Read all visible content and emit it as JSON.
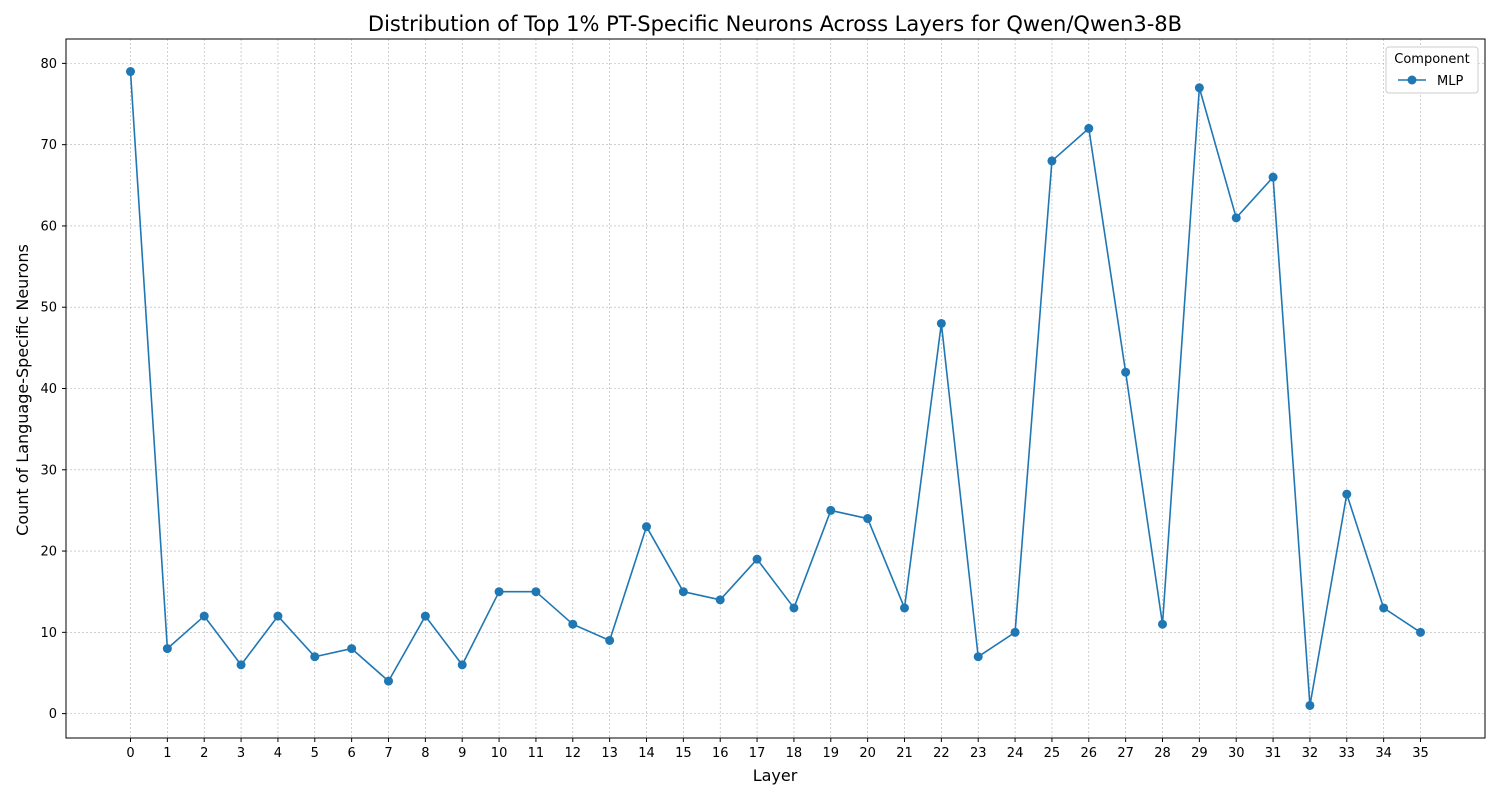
{
  "chart_data": {
    "type": "line",
    "title": "Distribution of Top 1% PT-Specific Neurons Across Layers for Qwen/Qwen3-8B",
    "xlabel": "Layer",
    "ylabel": "Count of Language-Specific Neurons",
    "x": [
      0,
      1,
      2,
      3,
      4,
      5,
      6,
      7,
      8,
      9,
      10,
      11,
      12,
      13,
      14,
      15,
      16,
      17,
      18,
      19,
      20,
      21,
      22,
      23,
      24,
      25,
      26,
      27,
      28,
      29,
      30,
      31,
      32,
      33,
      34,
      35
    ],
    "series": [
      {
        "name": "MLP",
        "color": "#1f77b4",
        "marker": "circle",
        "values": [
          79,
          8,
          12,
          6,
          12,
          7,
          8,
          4,
          12,
          6,
          15,
          15,
          11,
          9,
          23,
          15,
          14,
          19,
          13,
          25,
          24,
          13,
          48,
          7,
          10,
          68,
          72,
          42,
          11,
          77,
          61,
          66,
          1,
          27,
          13,
          10
        ]
      }
    ],
    "xlim": [
      -1.75,
      36.75
    ],
    "ylim": [
      -3,
      83
    ],
    "yticks": [
      0,
      10,
      20,
      30,
      40,
      50,
      60,
      70,
      80
    ],
    "grid": true,
    "legend": {
      "title": "Component",
      "placement": "top-right"
    }
  }
}
